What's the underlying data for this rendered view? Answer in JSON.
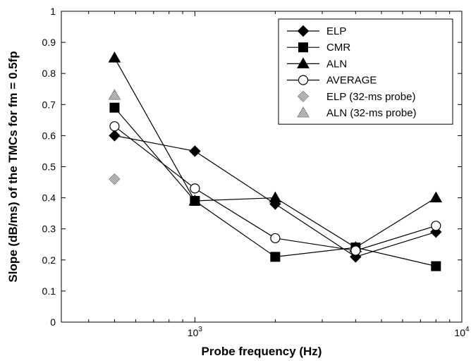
{
  "chart_data": {
    "type": "line",
    "x_scale": "log",
    "xlim": [
      316,
      10000
    ],
    "ylim": [
      0,
      1
    ],
    "xlabel": "Probe frequency (Hz)",
    "ylabel": "Slope (dB/ms) of the TMCs for fm = 0.5fp",
    "grid": false,
    "legend_position": "top-right",
    "y_ticks": [
      "0",
      "0.1",
      "0.2",
      "0.3",
      "0.4",
      "0.5",
      "0.6",
      "0.7",
      "0.8",
      "0.9",
      "1"
    ],
    "x_tick_labels": [
      {
        "value": 1000,
        "base": "10",
        "exp": "3"
      },
      {
        "value": 10000,
        "base": "10",
        "exp": "4"
      }
    ],
    "series": [
      {
        "name": "ELP",
        "marker": "diamond",
        "line": true,
        "x": [
          500,
          1000,
          2000,
          4000,
          8000
        ],
        "y": [
          0.6,
          0.55,
          0.38,
          0.21,
          0.29
        ]
      },
      {
        "name": "CMR",
        "marker": "square",
        "line": true,
        "x": [
          500,
          1000,
          2000,
          4000,
          8000
        ],
        "y": [
          0.69,
          0.39,
          0.21,
          0.24,
          0.18
        ]
      },
      {
        "name": "ALN",
        "marker": "triangle",
        "line": true,
        "x": [
          500,
          1000,
          2000,
          4000,
          8000
        ],
        "y": [
          0.85,
          0.39,
          0.4,
          0.24,
          0.4
        ]
      },
      {
        "name": "AVERAGE",
        "marker": "circle-open",
        "line": true,
        "x": [
          500,
          1000,
          2000,
          4000,
          8000
        ],
        "y": [
          0.63,
          0.43,
          0.27,
          0.23,
          0.31
        ]
      },
      {
        "name": "ELP (32-ms probe)",
        "marker": "diamond-gray",
        "line": false,
        "x": [
          500
        ],
        "y": [
          0.46
        ]
      },
      {
        "name": "ALN (32-ms probe)",
        "marker": "triangle-gray",
        "line": false,
        "x": [
          500
        ],
        "y": [
          0.73
        ]
      }
    ]
  }
}
